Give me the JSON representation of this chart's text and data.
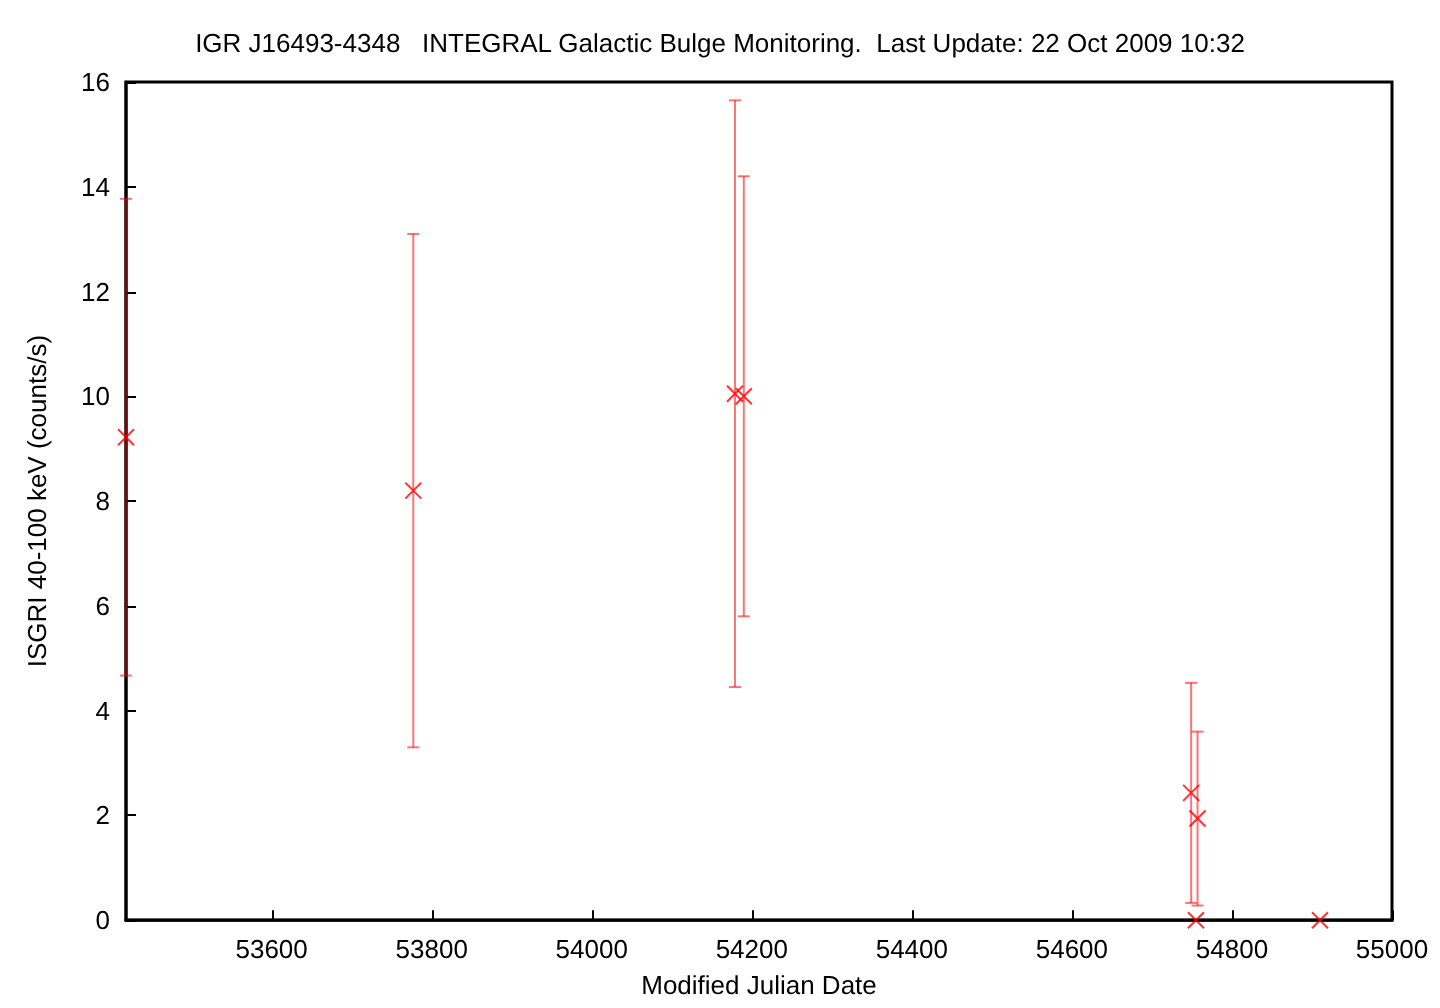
{
  "chart_data": {
    "type": "scatter",
    "title": "IGR J16493-4348   INTEGRAL Galactic Bulge Monitoring.  Last Update: 22 Oct 2009 10:32",
    "xlabel": "Modified Julian Date",
    "ylabel": "ISGRI 40-100 keV (counts/s)",
    "series": [
      {
        "color": "#ff0000",
        "x": [
          53418,
          53777,
          54179,
          54190,
          54749,
          54757,
          54755,
          54910
        ],
        "values": [
          9.22,
          8.2,
          10.05,
          10.0,
          2.43,
          1.94,
          0,
          0
        ],
        "errors": [
          4.55,
          4.9,
          5.6,
          4.2,
          2.1,
          1.66,
          null,
          null
        ]
      }
    ],
    "xlim": [
      53418,
      55000
    ],
    "xticks": [
      53600,
      53800,
      54000,
      54200,
      54400,
      54600,
      54800,
      55000
    ],
    "ylim": [
      0,
      16
    ],
    "yticks": [
      0,
      2,
      4,
      6,
      8,
      10,
      12,
      14,
      16
    ],
    "grid": false,
    "marker": "cross"
  }
}
